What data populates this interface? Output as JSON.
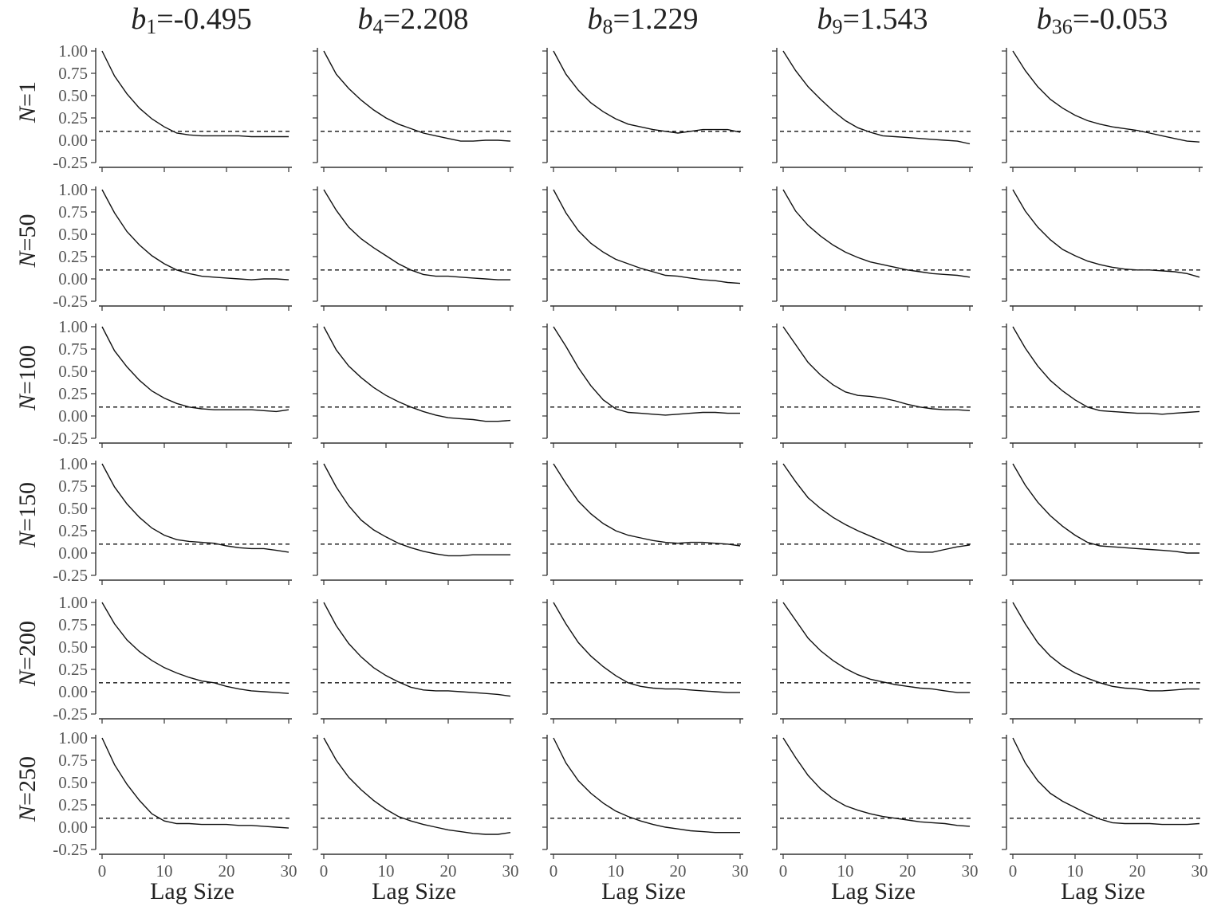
{
  "chart_data": {
    "type": "line",
    "layout": "facet-grid",
    "columns": [
      {
        "var": "b",
        "sub": "1",
        "value": "=-0.495"
      },
      {
        "var": "b",
        "sub": "4",
        "value": "=2.208"
      },
      {
        "var": "b",
        "sub": "8",
        "value": "=1.229"
      },
      {
        "var": "b",
        "sub": "9",
        "value": "=1.543"
      },
      {
        "var": "b",
        "sub": "36",
        "value": "=-0.053"
      }
    ],
    "rows": [
      {
        "var": "N",
        "value": "=1"
      },
      {
        "var": "N",
        "value": "=50"
      },
      {
        "var": "N",
        "value": "=100"
      },
      {
        "var": "N",
        "value": "=150"
      },
      {
        "var": "N",
        "value": "=200"
      },
      {
        "var": "N",
        "value": "=250"
      }
    ],
    "xlabel": "Lag Size",
    "xlim": [
      0,
      30
    ],
    "ylim": [
      -0.25,
      1.0
    ],
    "xticks": [
      0,
      10,
      20,
      30
    ],
    "xtick_labels": [
      "0",
      "10",
      "20",
      "30"
    ],
    "yticks": [
      1.0,
      0.75,
      0.5,
      0.25,
      0.0,
      -0.25
    ],
    "ytick_labels": [
      "1.00",
      "0.75",
      "0.50",
      "0.25",
      "0.00",
      "-0.25"
    ],
    "threshold": 0.1,
    "grid": false,
    "x": [
      0,
      2,
      4,
      6,
      8,
      10,
      12,
      14,
      16,
      18,
      20,
      22,
      24,
      26,
      28,
      30
    ],
    "panels": [
      [
        [
          1.0,
          0.72,
          0.52,
          0.36,
          0.24,
          0.15,
          0.08,
          0.06,
          0.05,
          0.05,
          0.05,
          0.05,
          0.04,
          0.04,
          0.04,
          0.04
        ],
        [
          1.0,
          0.74,
          0.58,
          0.45,
          0.34,
          0.25,
          0.18,
          0.13,
          0.08,
          0.05,
          0.02,
          -0.01,
          -0.01,
          0.0,
          0.0,
          -0.01
        ],
        [
          1.0,
          0.74,
          0.56,
          0.42,
          0.32,
          0.24,
          0.18,
          0.15,
          0.12,
          0.1,
          0.08,
          0.1,
          0.12,
          0.12,
          0.12,
          0.09
        ],
        [
          1.0,
          0.78,
          0.6,
          0.46,
          0.33,
          0.22,
          0.14,
          0.09,
          0.05,
          0.04,
          0.03,
          0.02,
          0.01,
          0.0,
          -0.01,
          -0.04
        ],
        [
          1.0,
          0.78,
          0.6,
          0.46,
          0.36,
          0.28,
          0.22,
          0.18,
          0.15,
          0.13,
          0.11,
          0.08,
          0.05,
          0.02,
          -0.01,
          -0.02
        ]
      ],
      [
        [
          1.0,
          0.74,
          0.53,
          0.38,
          0.26,
          0.17,
          0.1,
          0.06,
          0.03,
          0.02,
          0.01,
          0.0,
          -0.01,
          0.0,
          0.0,
          -0.01
        ],
        [
          1.0,
          0.77,
          0.58,
          0.45,
          0.35,
          0.26,
          0.17,
          0.1,
          0.05,
          0.03,
          0.03,
          0.02,
          0.01,
          0.0,
          -0.01,
          -0.01
        ],
        [
          1.0,
          0.74,
          0.54,
          0.4,
          0.3,
          0.22,
          0.17,
          0.12,
          0.08,
          0.04,
          0.03,
          0.01,
          -0.01,
          -0.02,
          -0.04,
          -0.05
        ],
        [
          1.0,
          0.76,
          0.6,
          0.48,
          0.38,
          0.3,
          0.24,
          0.19,
          0.16,
          0.13,
          0.1,
          0.08,
          0.06,
          0.05,
          0.04,
          0.02
        ],
        [
          1.0,
          0.76,
          0.58,
          0.44,
          0.33,
          0.26,
          0.2,
          0.16,
          0.13,
          0.11,
          0.1,
          0.1,
          0.09,
          0.08,
          0.06,
          0.02
        ]
      ],
      [
        [
          1.0,
          0.73,
          0.55,
          0.4,
          0.28,
          0.2,
          0.14,
          0.1,
          0.08,
          0.07,
          0.07,
          0.07,
          0.07,
          0.06,
          0.05,
          0.07
        ],
        [
          1.0,
          0.74,
          0.56,
          0.43,
          0.32,
          0.23,
          0.16,
          0.1,
          0.05,
          0.01,
          -0.02,
          -0.03,
          -0.04,
          -0.06,
          -0.06,
          -0.05
        ],
        [
          1.0,
          0.78,
          0.54,
          0.34,
          0.18,
          0.08,
          0.04,
          0.03,
          0.02,
          0.01,
          0.02,
          0.03,
          0.04,
          0.04,
          0.03,
          0.03
        ],
        [
          1.0,
          0.8,
          0.6,
          0.46,
          0.35,
          0.27,
          0.23,
          0.22,
          0.2,
          0.17,
          0.13,
          0.1,
          0.08,
          0.07,
          0.07,
          0.06
        ],
        [
          1.0,
          0.76,
          0.56,
          0.4,
          0.28,
          0.18,
          0.1,
          0.06,
          0.05,
          0.04,
          0.03,
          0.03,
          0.02,
          0.03,
          0.04,
          0.05
        ]
      ],
      [
        [
          1.0,
          0.74,
          0.55,
          0.4,
          0.28,
          0.2,
          0.15,
          0.13,
          0.12,
          0.11,
          0.08,
          0.06,
          0.05,
          0.05,
          0.03,
          0.01
        ],
        [
          1.0,
          0.74,
          0.53,
          0.37,
          0.26,
          0.18,
          0.11,
          0.06,
          0.02,
          -0.01,
          -0.03,
          -0.03,
          -0.02,
          -0.02,
          -0.02,
          -0.02
        ],
        [
          1.0,
          0.78,
          0.58,
          0.44,
          0.33,
          0.25,
          0.2,
          0.17,
          0.14,
          0.12,
          0.11,
          0.12,
          0.12,
          0.11,
          0.1,
          0.08
        ],
        [
          1.0,
          0.8,
          0.62,
          0.5,
          0.4,
          0.32,
          0.25,
          0.19,
          0.13,
          0.07,
          0.02,
          0.01,
          0.01,
          0.04,
          0.07,
          0.09
        ],
        [
          1.0,
          0.76,
          0.57,
          0.42,
          0.3,
          0.2,
          0.12,
          0.08,
          0.07,
          0.06,
          0.05,
          0.04,
          0.03,
          0.02,
          0.0,
          0.0
        ]
      ],
      [
        [
          1.0,
          0.76,
          0.58,
          0.45,
          0.35,
          0.27,
          0.21,
          0.16,
          0.12,
          0.1,
          0.06,
          0.03,
          0.01,
          0.0,
          -0.01,
          -0.02
        ],
        [
          1.0,
          0.74,
          0.54,
          0.39,
          0.27,
          0.18,
          0.11,
          0.05,
          0.02,
          0.01,
          0.01,
          0.0,
          -0.01,
          -0.02,
          -0.03,
          -0.05
        ],
        [
          1.0,
          0.76,
          0.55,
          0.4,
          0.28,
          0.18,
          0.1,
          0.06,
          0.04,
          0.03,
          0.03,
          0.02,
          0.01,
          0.0,
          -0.01,
          -0.01
        ],
        [
          1.0,
          0.8,
          0.6,
          0.46,
          0.35,
          0.26,
          0.19,
          0.14,
          0.11,
          0.08,
          0.06,
          0.04,
          0.03,
          0.01,
          -0.01,
          -0.01
        ],
        [
          1.0,
          0.76,
          0.55,
          0.4,
          0.29,
          0.21,
          0.15,
          0.1,
          0.06,
          0.04,
          0.03,
          0.01,
          0.01,
          0.02,
          0.03,
          0.03
        ]
      ],
      [
        [
          1.0,
          0.7,
          0.48,
          0.3,
          0.15,
          0.07,
          0.04,
          0.04,
          0.03,
          0.03,
          0.03,
          0.02,
          0.02,
          0.01,
          0.0,
          -0.01
        ],
        [
          1.0,
          0.75,
          0.56,
          0.42,
          0.3,
          0.2,
          0.12,
          0.07,
          0.03,
          0.0,
          -0.03,
          -0.05,
          -0.07,
          -0.08,
          -0.08,
          -0.06
        ],
        [
          1.0,
          0.72,
          0.52,
          0.38,
          0.27,
          0.18,
          0.12,
          0.07,
          0.03,
          0.0,
          -0.02,
          -0.04,
          -0.05,
          -0.06,
          -0.06,
          -0.06
        ],
        [
          1.0,
          0.78,
          0.58,
          0.43,
          0.32,
          0.24,
          0.19,
          0.15,
          0.12,
          0.1,
          0.08,
          0.06,
          0.05,
          0.04,
          0.02,
          0.01
        ],
        [
          1.0,
          0.72,
          0.52,
          0.38,
          0.29,
          0.22,
          0.15,
          0.09,
          0.05,
          0.04,
          0.04,
          0.04,
          0.03,
          0.03,
          0.03,
          0.04
        ]
      ]
    ]
  }
}
